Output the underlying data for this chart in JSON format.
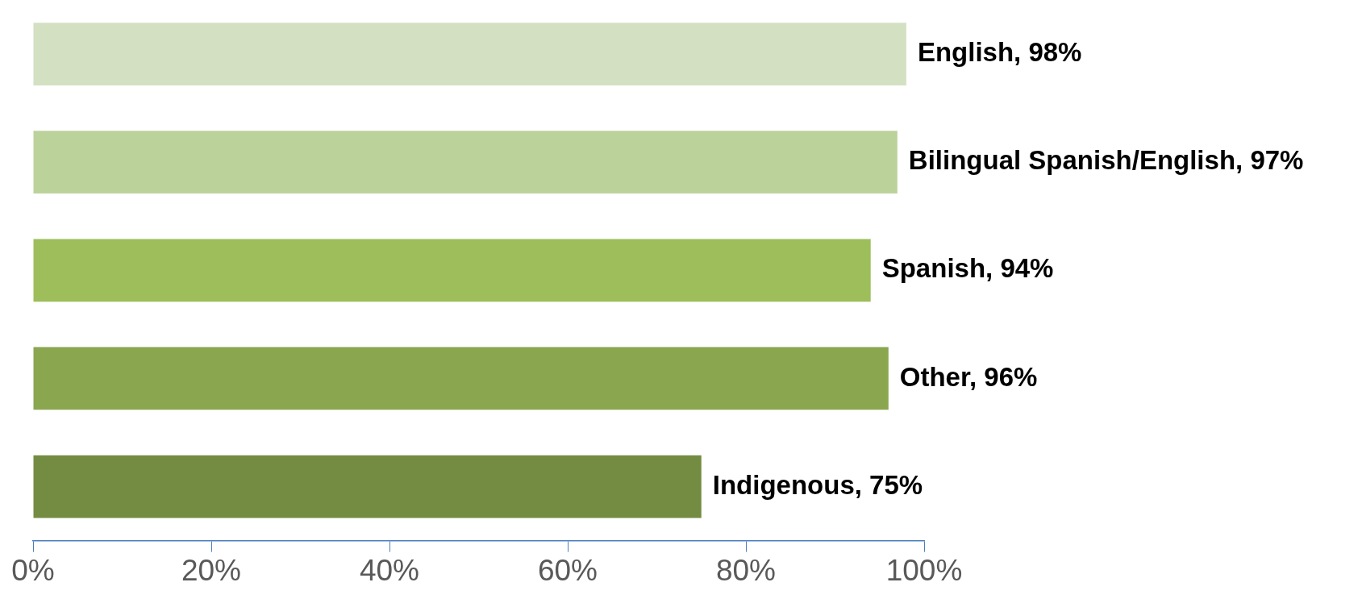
{
  "chart_data": {
    "type": "bar",
    "orientation": "horizontal",
    "categories": [
      null,
      null,
      null,
      null,
      null
    ],
    "values": [
      98,
      97,
      94,
      96,
      75
    ],
    "colors": [
      "#d3e0c2",
      "#bcd29b",
      "#9dbe5b",
      "#8aa64f",
      "#738c42"
    ],
    "value_labels": [
      "English, 98%",
      "Bilingual Spanish/English, 97%",
      "Spanish, 94%",
      "Other, 96%",
      "Indigenous, 75%"
    ],
    "xlim": [
      0,
      100
    ],
    "xticks": [
      {
        "value": 0,
        "label": "0%"
      },
      {
        "value": 20,
        "label": "20%"
      },
      {
        "value": 40,
        "label": "40%"
      },
      {
        "value": 60,
        "label": "60%"
      },
      {
        "value": 80,
        "label": "80%"
      },
      {
        "value": 100,
        "label": "100%"
      }
    ],
    "tick_labels": "x",
    "grid": false,
    "legend": false
  }
}
